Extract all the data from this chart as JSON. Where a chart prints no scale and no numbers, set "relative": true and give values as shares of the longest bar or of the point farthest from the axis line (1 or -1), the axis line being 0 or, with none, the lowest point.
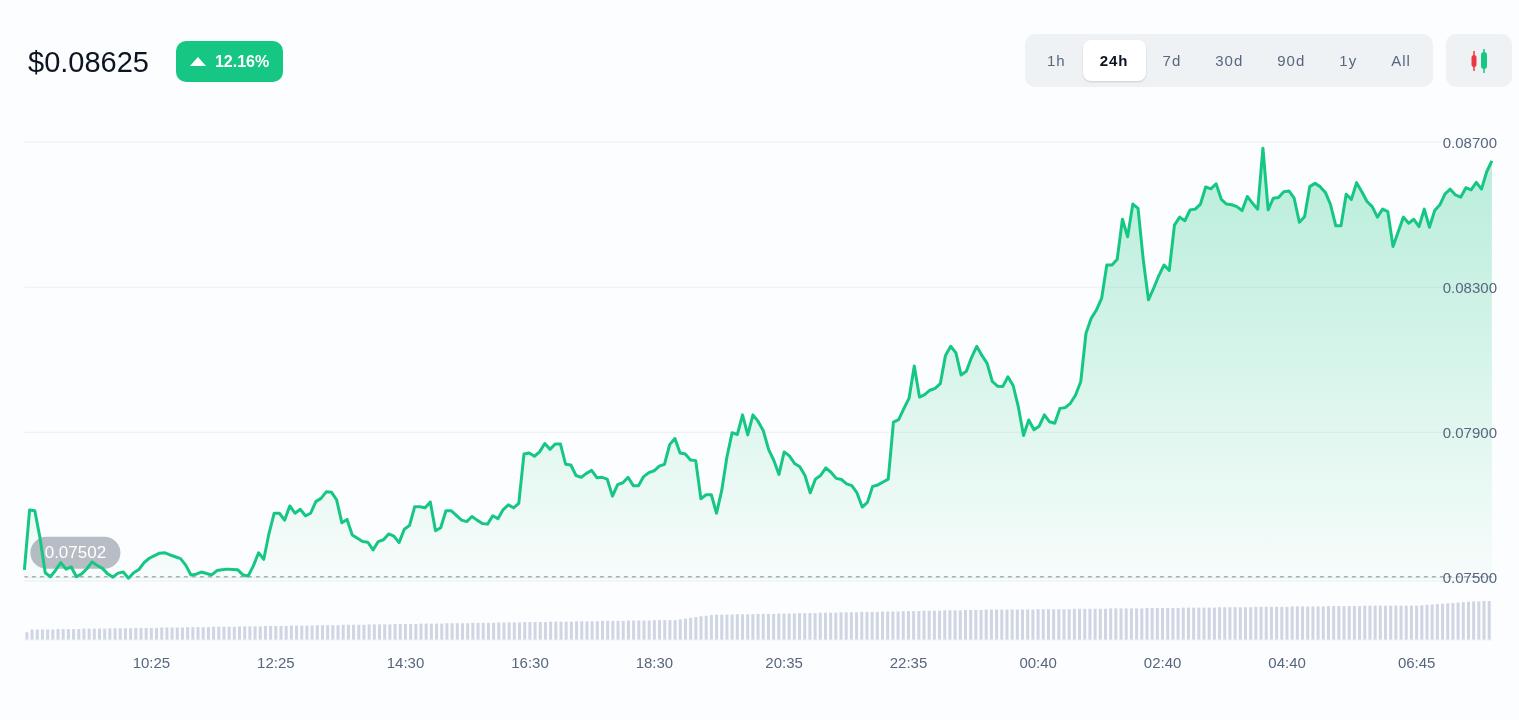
{
  "chart_data": [
    {
      "type": "area",
      "title": "$0.08625",
      "subtitle": "12.16%",
      "annotations": [
        "1h",
        "24h",
        "7d",
        "30d",
        "90d",
        "1y",
        "All"
      ],
      "categories": [
        null,
        null,
        null,
        null,
        null,
        null,
        null,
        null,
        null,
        null,
        null,
        null,
        null,
        null,
        null,
        null,
        null,
        null,
        null,
        null,
        null,
        null,
        null,
        null,
        null,
        null,
        null,
        null,
        null,
        null,
        null,
        null,
        null,
        null,
        null,
        null,
        null,
        null,
        null,
        null,
        null,
        null,
        null,
        null,
        null,
        null,
        null,
        null,
        null,
        null,
        null,
        null,
        null,
        null,
        null,
        null,
        null,
        null,
        null,
        null,
        null,
        null,
        null,
        null,
        null,
        null,
        null,
        null,
        null,
        null,
        null,
        null,
        null,
        null,
        null,
        null,
        null,
        null,
        null,
        null,
        null,
        null,
        null,
        null,
        null,
        null,
        null,
        null,
        null,
        null,
        null,
        null,
        null,
        null,
        null,
        null,
        null,
        null,
        null,
        null,
        null,
        null,
        null,
        null,
        null,
        null,
        null,
        null,
        null,
        null,
        null,
        null,
        null,
        null,
        null,
        null,
        null,
        null,
        null,
        null,
        null,
        null,
        null,
        null,
        null,
        null,
        null,
        null,
        null,
        null,
        null,
        null,
        null,
        null,
        null,
        null,
        null,
        null,
        null,
        null,
        null,
        null,
        null,
        null,
        null,
        null,
        null,
        null,
        null,
        null,
        null,
        null,
        null,
        null,
        null,
        null,
        null,
        null,
        null,
        null,
        null,
        null,
        null,
        null,
        null,
        null,
        null,
        null,
        null,
        null,
        null,
        null,
        null,
        null,
        null,
        null,
        null,
        null,
        null,
        null,
        null,
        null,
        null,
        null,
        null,
        null,
        null,
        null,
        null,
        null,
        null,
        null,
        null,
        null,
        null,
        null,
        null,
        null,
        null,
        null,
        null,
        null,
        null,
        null,
        null,
        null,
        null,
        null,
        null,
        null,
        null,
        null,
        null,
        null,
        null,
        null,
        null,
        null,
        null,
        null,
        null,
        null,
        null,
        null,
        null,
        null,
        null,
        null,
        null,
        null,
        null,
        null,
        null,
        null,
        null,
        null,
        null,
        null,
        null,
        null,
        null,
        null,
        null,
        null,
        null,
        null,
        null,
        null,
        null,
        null,
        null,
        null,
        null,
        null,
        null,
        null,
        null,
        null,
        null,
        null,
        null,
        null,
        null,
        null,
        null,
        null,
        null,
        null,
        null,
        null,
        null,
        null,
        null,
        null,
        null,
        null,
        null,
        null,
        null,
        null,
        null,
        null,
        null
      ],
      "values": [
        0.07521,
        0.07686,
        0.07684,
        0.07609,
        0.07513,
        0.07502,
        0.0752,
        0.07541,
        0.07523,
        0.07529,
        0.07502,
        0.0751,
        0.07524,
        0.07543,
        0.07533,
        0.07525,
        0.0751,
        0.07501,
        0.07512,
        0.07515,
        0.07498,
        0.07513,
        0.07522,
        0.07541,
        0.07553,
        0.0756,
        0.07567,
        0.07568,
        0.07562,
        0.07557,
        0.07552,
        0.07534,
        0.07507,
        0.07509,
        0.07515,
        0.07511,
        0.07507,
        0.07519,
        0.07521,
        0.07523,
        0.07522,
        0.07521,
        0.07507,
        0.07504,
        0.07532,
        0.07568,
        0.0755,
        0.07621,
        0.07677,
        0.07677,
        0.07658,
        0.07697,
        0.07677,
        0.07688,
        0.0767,
        0.07677,
        0.07709,
        0.07718,
        0.07736,
        0.07735,
        0.07714,
        0.07651,
        0.0766,
        0.07617,
        0.07608,
        0.07599,
        0.07597,
        0.07576,
        0.07599,
        0.07604,
        0.0762,
        0.07614,
        0.07596,
        0.07633,
        0.07643,
        0.07695,
        0.07695,
        0.07692,
        0.07708,
        0.07629,
        0.07637,
        0.07684,
        0.07684,
        0.07671,
        0.07658,
        0.07654,
        0.07668,
        0.07658,
        0.07649,
        0.07647,
        0.0767,
        0.07662,
        0.07687,
        0.077,
        0.07692,
        0.07704,
        0.0784,
        0.07843,
        0.07834,
        0.07846,
        0.07869,
        0.07853,
        0.07868,
        0.07868,
        0.07812,
        0.0781,
        0.07781,
        0.07776,
        0.07787,
        0.07795,
        0.07775,
        0.07776,
        0.07771,
        0.07724,
        0.07756,
        0.07761,
        0.07776,
        0.07753,
        0.07753,
        0.07778,
        0.07789,
        0.07794,
        0.07807,
        0.07812,
        0.07866,
        0.07883,
        0.07843,
        0.0784,
        0.07824,
        0.07822,
        0.07717,
        0.07728,
        0.07728,
        0.07677,
        0.0774,
        0.07832,
        0.07899,
        0.07894,
        0.07948,
        0.07893,
        0.07948,
        0.0793,
        0.07904,
        0.07853,
        0.07823,
        0.07784,
        0.07846,
        0.07835,
        0.07814,
        0.07805,
        0.07781,
        0.07733,
        0.07771,
        0.07781,
        0.07802,
        0.0779,
        0.07773,
        0.0777,
        0.07758,
        0.07753,
        0.07733,
        0.07694,
        0.07707,
        0.07751,
        0.07755,
        0.07763,
        0.07771,
        0.07928,
        0.07935,
        0.07965,
        0.07994,
        0.08083,
        0.07997,
        0.08004,
        0.08016,
        0.08021,
        0.08034,
        0.08112,
        0.08137,
        0.08119,
        0.08058,
        0.08068,
        0.08106,
        0.08137,
        0.08112,
        0.0809,
        0.0804,
        0.08027,
        0.08026,
        0.08053,
        0.08029,
        0.0797,
        0.07891,
        0.07934,
        0.07907,
        0.07917,
        0.07948,
        0.07929,
        0.07925,
        0.07966,
        0.07968,
        0.0798,
        0.08003,
        0.0804,
        0.08173,
        0.08214,
        0.08237,
        0.08269,
        0.08361,
        0.08361,
        0.08377,
        0.08487,
        0.08439,
        0.08529,
        0.08517,
        0.08376,
        0.08265,
        0.08297,
        0.08332,
        0.08361,
        0.08346,
        0.08471,
        0.08493,
        0.08483,
        0.08513,
        0.08515,
        0.08529,
        0.08576,
        0.08571,
        0.08585,
        0.08542,
        0.08529,
        0.08527,
        0.08522,
        0.08511,
        0.0855,
        0.08531,
        0.08515,
        0.08683,
        0.08513,
        0.08545,
        0.08547,
        0.08563,
        0.08565,
        0.08545,
        0.08479,
        0.08494,
        0.08577,
        0.08586,
        0.08577,
        0.08561,
        0.08527,
        0.08469,
        0.08469,
        0.08556,
        0.08542,
        0.08588,
        0.08563,
        0.08536,
        0.08522,
        0.08493,
        0.08515,
        0.08508,
        0.08412,
        0.08453,
        0.08493,
        0.08476,
        0.08487,
        0.08467,
        0.08515,
        0.08465,
        0.08511,
        0.08527,
        0.08557,
        0.0857,
        0.08554,
        0.08548,
        0.08574,
        0.08568,
        0.08589,
        0.0857,
        0.08618,
        0.08648
      ],
      "color": "#16c784",
      "ylim": [
        0.0749,
        0.087
      ],
      "yticks": [
        {
          "value": 0.075,
          "label": "0.07500"
        },
        {
          "value": 0.079,
          "label": "0.07900"
        },
        {
          "value": 0.083,
          "label": "0.08300"
        },
        {
          "value": 0.087,
          "label": "0.08700"
        }
      ],
      "grid": "y",
      "tick_labels": "y",
      "ref_lines": [
        {
          "axis": "y",
          "value": 0.07502,
          "label": "0.07502",
          "color": "#abb0ba",
          "line_style": "dashed"
        }
      ]
    },
    {
      "type": "bar",
      "relative": true,
      "color": "#cfd5e2",
      "tick_labels": "x",
      "categories": [
        null,
        null,
        null,
        null,
        null,
        null,
        null,
        null,
        null,
        null,
        null,
        null,
        null,
        null,
        null,
        null,
        null,
        null,
        null,
        null,
        null,
        null,
        null,
        null,
        "10:25",
        null,
        null,
        null,
        null,
        null,
        null,
        null,
        null,
        null,
        null,
        null,
        null,
        null,
        null,
        null,
        null,
        null,
        null,
        null,
        null,
        null,
        null,
        null,
        "12:25",
        null,
        null,
        null,
        null,
        null,
        null,
        null,
        null,
        null,
        null,
        null,
        null,
        null,
        null,
        null,
        null,
        null,
        null,
        null,
        null,
        null,
        null,
        null,
        null,
        "14:30",
        null,
        null,
        null,
        null,
        null,
        null,
        null,
        null,
        null,
        null,
        null,
        null,
        null,
        null,
        null,
        null,
        null,
        null,
        null,
        null,
        null,
        null,
        null,
        "16:30",
        null,
        null,
        null,
        null,
        null,
        null,
        null,
        null,
        null,
        null,
        null,
        null,
        null,
        null,
        null,
        null,
        null,
        null,
        null,
        null,
        null,
        null,
        null,
        "18:30",
        null,
        null,
        null,
        null,
        null,
        null,
        null,
        null,
        null,
        null,
        null,
        null,
        null,
        null,
        null,
        null,
        null,
        null,
        null,
        null,
        null,
        null,
        null,
        null,
        "20:35",
        null,
        null,
        null,
        null,
        null,
        null,
        null,
        null,
        null,
        null,
        null,
        null,
        null,
        null,
        null,
        null,
        null,
        null,
        null,
        null,
        null,
        null,
        null,
        "22:35",
        null,
        null,
        null,
        null,
        null,
        null,
        null,
        null,
        null,
        null,
        null,
        null,
        null,
        null,
        null,
        null,
        null,
        null,
        null,
        null,
        null,
        null,
        null,
        null,
        "00:40",
        null,
        null,
        null,
        null,
        null,
        null,
        null,
        null,
        null,
        null,
        null,
        null,
        null,
        null,
        null,
        null,
        null,
        null,
        null,
        null,
        null,
        null,
        null,
        "02:40",
        null,
        null,
        null,
        null,
        null,
        null,
        null,
        null,
        null,
        null,
        null,
        null,
        null,
        null,
        null,
        null,
        null,
        null,
        null,
        null,
        null,
        null,
        null,
        "04:40",
        null,
        null,
        null,
        null,
        null,
        null,
        null,
        null,
        null,
        null,
        null,
        null,
        null,
        null,
        null,
        null,
        null,
        null,
        null,
        null,
        null,
        null,
        null,
        null,
        "06:45",
        null,
        null,
        null,
        null,
        null,
        null,
        null,
        null,
        null,
        null,
        null,
        null,
        null,
        null
      ],
      "values": [
        0.2,
        0.27,
        0.27,
        0.27,
        0.27,
        0.27,
        0.28,
        0.28,
        0.28,
        0.28,
        0.28,
        0.29,
        0.29,
        0.29,
        0.29,
        0.29,
        0.3,
        0.3,
        0.3,
        0.3,
        0.3,
        0.31,
        0.31,
        0.31,
        0.31,
        0.31,
        0.32,
        0.32,
        0.32,
        0.32,
        0.32,
        0.33,
        0.33,
        0.33,
        0.33,
        0.33,
        0.34,
        0.34,
        0.34,
        0.34,
        0.34,
        0.35,
        0.35,
        0.35,
        0.35,
        0.35,
        0.36,
        0.36,
        0.36,
        0.36,
        0.36,
        0.37,
        0.37,
        0.37,
        0.37,
        0.37,
        0.38,
        0.38,
        0.38,
        0.38,
        0.38,
        0.39,
        0.39,
        0.39,
        0.39,
        0.39,
        0.4,
        0.4,
        0.4,
        0.4,
        0.4,
        0.41,
        0.41,
        0.41,
        0.41,
        0.41,
        0.42,
        0.42,
        0.42,
        0.42,
        0.42,
        0.43,
        0.43,
        0.43,
        0.43,
        0.43,
        0.44,
        0.44,
        0.44,
        0.44,
        0.44,
        0.45,
        0.45,
        0.45,
        0.45,
        0.45,
        0.46,
        0.46,
        0.46,
        0.46,
        0.46,
        0.47,
        0.47,
        0.47,
        0.47,
        0.47,
        0.48,
        0.48,
        0.48,
        0.48,
        0.48,
        0.49,
        0.49,
        0.49,
        0.49,
        0.49,
        0.5,
        0.5,
        0.5,
        0.5,
        0.5,
        0.51,
        0.51,
        0.51,
        0.51,
        0.51,
        0.53,
        0.55,
        0.57,
        0.59,
        0.61,
        0.62,
        0.64,
        0.65,
        0.65,
        0.65,
        0.65,
        0.66,
        0.66,
        0.66,
        0.66,
        0.67,
        0.67,
        0.67,
        0.67,
        0.68,
        0.68,
        0.68,
        0.68,
        0.69,
        0.69,
        0.69,
        0.69,
        0.7,
        0.7,
        0.7,
        0.7,
        0.71,
        0.71,
        0.71,
        0.71,
        0.72,
        0.72,
        0.72,
        0.72,
        0.73,
        0.73,
        0.73,
        0.73,
        0.74,
        0.74,
        0.74,
        0.74,
        0.75,
        0.75,
        0.75,
        0.75,
        0.76,
        0.76,
        0.76,
        0.76,
        0.77,
        0.77,
        0.77,
        0.77,
        0.78,
        0.78,
        0.78,
        0.78,
        0.78,
        0.78,
        0.78,
        0.78,
        0.78,
        0.78,
        0.79,
        0.79,
        0.79,
        0.79,
        0.79,
        0.79,
        0.79,
        0.8,
        0.8,
        0.8,
        0.8,
        0.8,
        0.8,
        0.8,
        0.81,
        0.81,
        0.81,
        0.81,
        0.81,
        0.81,
        0.81,
        0.82,
        0.82,
        0.82,
        0.82,
        0.82,
        0.82,
        0.82,
        0.83,
        0.83,
        0.83,
        0.83,
        0.83,
        0.83,
        0.83,
        0.84,
        0.84,
        0.84,
        0.84,
        0.84,
        0.84,
        0.84,
        0.85,
        0.85,
        0.85,
        0.85,
        0.85,
        0.85,
        0.85,
        0.86,
        0.86,
        0.86,
        0.86,
        0.86,
        0.86,
        0.86,
        0.87,
        0.87,
        0.87,
        0.87,
        0.87,
        0.87,
        0.87,
        0.88,
        0.88,
        0.88,
        0.88,
        0.88,
        0.88,
        0.88,
        0.88,
        0.88,
        0.88,
        0.88,
        0.89,
        0.9,
        0.91,
        0.92,
        0.93,
        0.94,
        0.95,
        0.96,
        0.97,
        0.98,
        0.99,
        0.99,
        1,
        1
      ]
    }
  ]
}
